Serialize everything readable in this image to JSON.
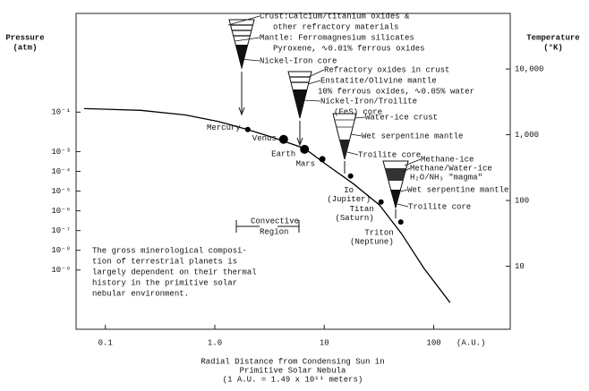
{
  "chart_data": {
    "type": "line",
    "y_label": [
      "Pressure",
      "(atm)"
    ],
    "y2_label": [
      "Temperature",
      "(°K)"
    ],
    "x_label": [
      "Radial Distance from Condensing Sun in",
      "Primitive Solar Nebula",
      "(1 A.U. = 1.49 x 10¹¹ meters)"
    ],
    "x_unit": "(A.U.)",
    "xscale": "log",
    "xlim": [
      0.054,
      500
    ],
    "xticks": [
      0.1,
      {
        "value": 1,
        "label": "1.0"
      },
      10,
      100
    ],
    "yscale": "log",
    "ylim": [
      1e-12,
      10000
    ],
    "yticks": [
      {
        "value": 0.1,
        "label": "10⁻¹"
      },
      {
        "value": 0.001,
        "label": "10⁻³"
      },
      {
        "value": 0.0001,
        "label": "10⁻⁴"
      },
      {
        "value": 1e-05,
        "label": "10⁻⁵"
      },
      {
        "value": 1e-06,
        "label": "10⁻⁶"
      },
      {
        "value": 1e-07,
        "label": "10⁻⁷"
      },
      {
        "value": 1e-08,
        "label": "10⁻⁸"
      },
      {
        "value": 1e-09,
        "label": "10⁻⁹"
      }
    ],
    "y2scale": "log",
    "y2lim": [
      1.1,
      70000
    ],
    "y2ticks": [
      10,
      100,
      {
        "value": 1000,
        "label": "1,000"
      },
      {
        "value": 10000,
        "label": "10,000"
      }
    ],
    "series": [
      {
        "axis": "y2",
        "color": "#000000",
        "x": [
          0.064,
          0.21,
          0.54,
          1.06,
          1.99,
          3.47,
          6.6,
          10.5,
          18.4,
          32,
          51,
          81,
          141
        ],
        "values": [
          2500,
          2350,
          2000,
          1600,
          1200,
          900,
          620,
          350,
          180,
          85,
          31,
          9.4,
          2.8
        ]
      }
    ],
    "planets": {
      "axis": "y2",
      "color": "#000000",
      "names": [
        [
          "Mercury"
        ],
        [
          "Venus"
        ],
        [
          "Earth"
        ],
        [
          "Mars"
        ],
        [
          "Io",
          "(Jupiter)"
        ],
        [
          "Titan",
          "(Saturn)"
        ],
        [
          "Triton",
          "(Neptune)"
        ]
      ],
      "x": [
        2.0,
        4.25,
        6.6,
        9.6,
        17.4,
        33,
        50
      ],
      "values": [
        1200,
        850,
        600,
        425,
        235,
        95,
        47
      ]
    },
    "annotations": [
      "Crust:Calcium/titanium oxides &",
      "other refractory materials",
      "Mantle: Ferromagnesium silicates",
      "Pyroxene, ∿0.01% ferrous oxides",
      "Nickel-Iron core",
      "Refractory oxides in crust",
      "Enstatite/Olivine mantle",
      "10% ferrous oxides, ∿0.05% water",
      "Nickel-Iron/Troilite",
      "(FeS) core",
      "Water-ice crust",
      "Wet serpentine mantle",
      "Troilite core",
      "Methane-ice",
      "Methane/Water-ice",
      "H₂O/NH₃ \"magma\"",
      "Wet serpentine mantle",
      "Troilite core",
      "Convective",
      "Region",
      "The gross minerological composi-",
      "tion of terrestrial planets is",
      "largely dependent on their thermal",
      "history in the primitive solar",
      "nebular environment."
    ]
  }
}
